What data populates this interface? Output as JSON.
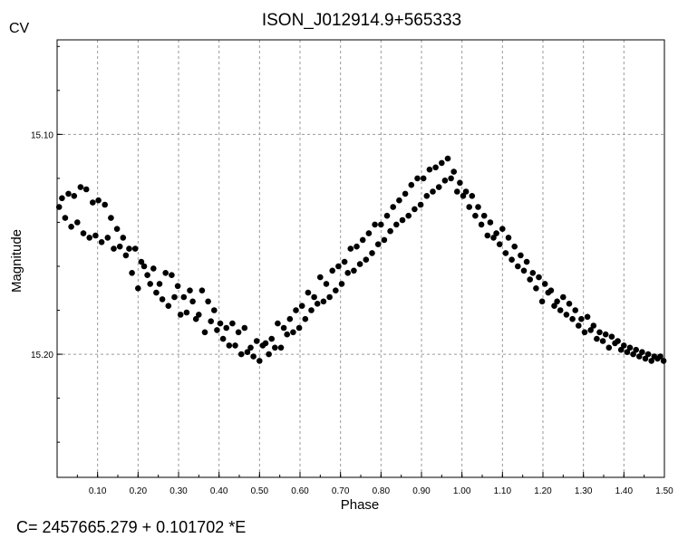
{
  "header": {
    "corner_label": "CV"
  },
  "footer": {
    "ephemeris": "C= 2457665.279 + 0.101702 *E"
  },
  "chart_data": {
    "type": "scatter",
    "title": "ISON_J012914.9+565333",
    "xlabel": "Phase",
    "ylabel": "Magnitude",
    "xlim": [
      0.0,
      1.5
    ],
    "ylim": [
      15.057,
      15.256
    ],
    "y_inverted": true,
    "grid": true,
    "x_ticks": [
      0.1,
      0.2,
      0.3,
      0.4,
      0.5,
      0.6,
      0.7,
      0.8,
      0.9,
      1.0,
      1.1,
      1.2,
      1.3,
      1.4,
      1.5
    ],
    "x_tick_labels": [
      "0.10",
      "0.20",
      "0.30",
      "0.40",
      "0.50",
      "0.60",
      "0.70",
      "0.80",
      "0.90",
      "1.00",
      "1.10",
      "1.20",
      "1.30",
      "1.40",
      "1.50"
    ],
    "y_ticks": [
      15.1,
      15.2
    ],
    "y_tick_labels": [
      "15.10",
      "15.20"
    ],
    "marker_color": "#000000",
    "points": [
      [
        0.005,
        15.133
      ],
      [
        0.012,
        15.129
      ],
      [
        0.02,
        15.138
      ],
      [
        0.028,
        15.127
      ],
      [
        0.035,
        15.142
      ],
      [
        0.042,
        15.128
      ],
      [
        0.05,
        15.14
      ],
      [
        0.058,
        15.124
      ],
      [
        0.065,
        15.145
      ],
      [
        0.072,
        15.125
      ],
      [
        0.08,
        15.147
      ],
      [
        0.088,
        15.131
      ],
      [
        0.095,
        15.146
      ],
      [
        0.102,
        15.13
      ],
      [
        0.11,
        15.149
      ],
      [
        0.118,
        15.132
      ],
      [
        0.125,
        15.147
      ],
      [
        0.133,
        15.138
      ],
      [
        0.14,
        15.152
      ],
      [
        0.148,
        15.143
      ],
      [
        0.155,
        15.151
      ],
      [
        0.163,
        15.147
      ],
      [
        0.17,
        15.155
      ],
      [
        0.178,
        15.152
      ],
      [
        0.185,
        15.163
      ],
      [
        0.193,
        15.152
      ],
      [
        0.2,
        15.17
      ],
      [
        0.208,
        15.158
      ],
      [
        0.215,
        15.16
      ],
      [
        0.223,
        15.164
      ],
      [
        0.23,
        15.168
      ],
      [
        0.238,
        15.161
      ],
      [
        0.245,
        15.172
      ],
      [
        0.253,
        15.168
      ],
      [
        0.26,
        15.175
      ],
      [
        0.268,
        15.163
      ],
      [
        0.275,
        15.178
      ],
      [
        0.283,
        15.164
      ],
      [
        0.29,
        15.174
      ],
      [
        0.298,
        15.169
      ],
      [
        0.305,
        15.182
      ],
      [
        0.313,
        15.174
      ],
      [
        0.32,
        15.181
      ],
      [
        0.328,
        15.171
      ],
      [
        0.335,
        15.176
      ],
      [
        0.343,
        15.184
      ],
      [
        0.35,
        15.182
      ],
      [
        0.358,
        15.171
      ],
      [
        0.365,
        15.19
      ],
      [
        0.373,
        15.176
      ],
      [
        0.38,
        15.185
      ],
      [
        0.388,
        15.18
      ],
      [
        0.395,
        15.189
      ],
      [
        0.403,
        15.186
      ],
      [
        0.41,
        15.193
      ],
      [
        0.418,
        15.188
      ],
      [
        0.425,
        15.196
      ],
      [
        0.433,
        15.186
      ],
      [
        0.44,
        15.196
      ],
      [
        0.448,
        15.19
      ],
      [
        0.455,
        15.2
      ],
      [
        0.463,
        15.188
      ],
      [
        0.47,
        15.199
      ],
      [
        0.478,
        15.197
      ],
      [
        0.485,
        15.201
      ],
      [
        0.493,
        15.194
      ],
      [
        0.5,
        15.203
      ],
      [
        0.508,
        15.196
      ],
      [
        0.515,
        15.195
      ],
      [
        0.523,
        15.2
      ],
      [
        0.53,
        15.193
      ],
      [
        0.538,
        15.197
      ],
      [
        0.545,
        15.186
      ],
      [
        0.553,
        15.197
      ],
      [
        0.56,
        15.188
      ],
      [
        0.568,
        15.191
      ],
      [
        0.575,
        15.184
      ],
      [
        0.583,
        15.19
      ],
      [
        0.59,
        15.18
      ],
      [
        0.598,
        15.188
      ],
      [
        0.605,
        15.178
      ],
      [
        0.613,
        15.184
      ],
      [
        0.62,
        15.172
      ],
      [
        0.628,
        15.18
      ],
      [
        0.635,
        15.174
      ],
      [
        0.643,
        15.177
      ],
      [
        0.65,
        15.165
      ],
      [
        0.658,
        15.176
      ],
      [
        0.665,
        15.168
      ],
      [
        0.673,
        15.174
      ],
      [
        0.68,
        15.162
      ],
      [
        0.688,
        15.171
      ],
      [
        0.695,
        15.16
      ],
      [
        0.703,
        15.168
      ],
      [
        0.71,
        15.158
      ],
      [
        0.718,
        15.163
      ],
      [
        0.725,
        15.152
      ],
      [
        0.733,
        15.162
      ],
      [
        0.74,
        15.151
      ],
      [
        0.748,
        15.159
      ],
      [
        0.755,
        15.148
      ],
      [
        0.763,
        15.157
      ],
      [
        0.77,
        15.145
      ],
      [
        0.778,
        15.154
      ],
      [
        0.785,
        15.141
      ],
      [
        0.793,
        15.15
      ],
      [
        0.8,
        15.141
      ],
      [
        0.808,
        15.148
      ],
      [
        0.815,
        15.137
      ],
      [
        0.823,
        15.144
      ],
      [
        0.83,
        15.133
      ],
      [
        0.838,
        15.141
      ],
      [
        0.845,
        15.13
      ],
      [
        0.853,
        15.139
      ],
      [
        0.86,
        15.127
      ],
      [
        0.868,
        15.137
      ],
      [
        0.875,
        15.123
      ],
      [
        0.883,
        15.134
      ],
      [
        0.89,
        15.12
      ],
      [
        0.898,
        15.132
      ],
      [
        0.905,
        15.12
      ],
      [
        0.913,
        15.128
      ],
      [
        0.92,
        15.116
      ],
      [
        0.928,
        15.126
      ],
      [
        0.935,
        15.115
      ],
      [
        0.943,
        15.124
      ],
      [
        0.95,
        15.113
      ],
      [
        0.958,
        15.121
      ],
      [
        0.965,
        15.111
      ],
      [
        0.973,
        15.12
      ],
      [
        0.98,
        15.117
      ],
      [
        0.988,
        15.126
      ],
      [
        0.995,
        15.122
      ],
      [
        1.003,
        15.128
      ],
      [
        1.01,
        15.126
      ],
      [
        1.018,
        15.133
      ],
      [
        1.025,
        15.128
      ],
      [
        1.033,
        15.137
      ],
      [
        1.04,
        15.133
      ],
      [
        1.048,
        15.141
      ],
      [
        1.055,
        15.137
      ],
      [
        1.063,
        15.146
      ],
      [
        1.07,
        15.14
      ],
      [
        1.078,
        15.147
      ],
      [
        1.085,
        15.145
      ],
      [
        1.093,
        15.15
      ],
      [
        1.1,
        15.143
      ],
      [
        1.108,
        15.154
      ],
      [
        1.115,
        15.147
      ],
      [
        1.123,
        15.157
      ],
      [
        1.13,
        15.151
      ],
      [
        1.138,
        15.16
      ],
      [
        1.145,
        15.155
      ],
      [
        1.153,
        15.162
      ],
      [
        1.16,
        15.158
      ],
      [
        1.168,
        15.166
      ],
      [
        1.175,
        15.163
      ],
      [
        1.183,
        15.17
      ],
      [
        1.19,
        15.165
      ],
      [
        1.198,
        15.176
      ],
      [
        1.205,
        15.168
      ],
      [
        1.213,
        15.172
      ],
      [
        1.22,
        15.171
      ],
      [
        1.228,
        15.178
      ],
      [
        1.235,
        15.176
      ],
      [
        1.243,
        15.18
      ],
      [
        1.25,
        15.174
      ],
      [
        1.258,
        15.182
      ],
      [
        1.265,
        15.177
      ],
      [
        1.273,
        15.184
      ],
      [
        1.28,
        15.18
      ],
      [
        1.288,
        15.187
      ],
      [
        1.295,
        15.184
      ],
      [
        1.303,
        15.19
      ],
      [
        1.31,
        15.183
      ],
      [
        1.318,
        15.189
      ],
      [
        1.325,
        15.187
      ],
      [
        1.333,
        15.193
      ],
      [
        1.34,
        15.19
      ],
      [
        1.348,
        15.194
      ],
      [
        1.355,
        15.191
      ],
      [
        1.363,
        15.197
      ],
      [
        1.37,
        15.192
      ],
      [
        1.378,
        15.195
      ],
      [
        1.385,
        15.194
      ],
      [
        1.393,
        15.198
      ],
      [
        1.4,
        15.196
      ],
      [
        1.408,
        15.199
      ],
      [
        1.415,
        15.197
      ],
      [
        1.423,
        15.2
      ],
      [
        1.43,
        15.198
      ],
      [
        1.438,
        15.201
      ],
      [
        1.445,
        15.199
      ],
      [
        1.453,
        15.202
      ],
      [
        1.46,
        15.2
      ],
      [
        1.468,
        15.203
      ],
      [
        1.475,
        15.201
      ],
      [
        1.483,
        15.202
      ],
      [
        1.49,
        15.201
      ],
      [
        1.498,
        15.203
      ]
    ]
  }
}
